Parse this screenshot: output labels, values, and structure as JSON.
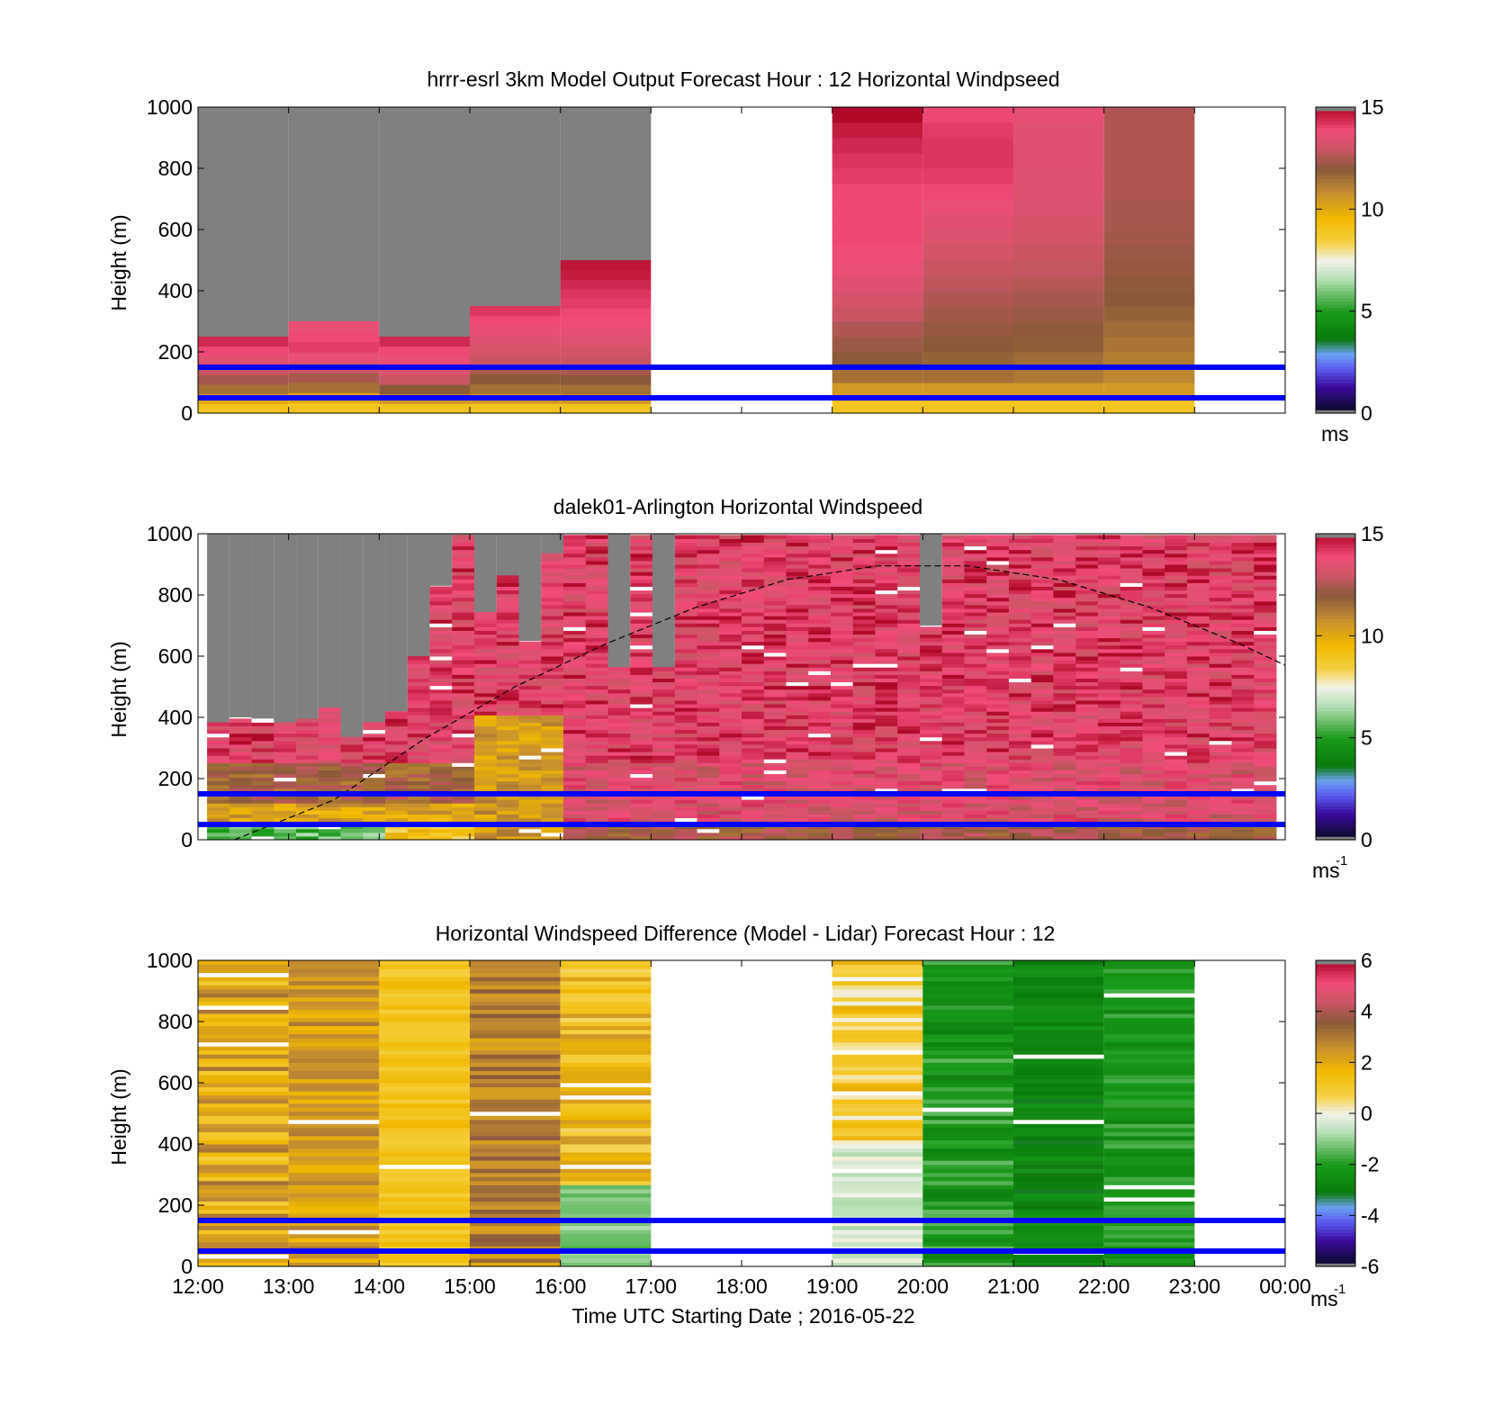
{
  "figure": {
    "xlabel": "Time UTC  Starting Date ; 2016-05-22",
    "x_ticks": [
      "12:00",
      "13:00",
      "14:00",
      "15:00",
      "16:00",
      "17:00",
      "18:00",
      "19:00",
      "20:00",
      "21:00",
      "22:00",
      "23:00",
      "00:00"
    ],
    "ylabel": "Height (m)",
    "y_ticks": [
      "0",
      "200",
      "400",
      "600",
      "800",
      "1000"
    ]
  },
  "chart_data": [
    {
      "type": "heatmap",
      "title": "hrrr-esrl 3km Model Output   Forecast Hour : 12 Horizontal Windpseed",
      "ylabel": "Height (m)",
      "xlim_hours": [
        12,
        24
      ],
      "ylim": [
        0,
        1000
      ],
      "colorbar": {
        "ticks": [
          "0",
          "5",
          "10",
          "15"
        ],
        "min": 0,
        "max": 15,
        "unit": "ms"
      },
      "reference_lines_m": [
        50,
        150
      ],
      "reference_line_color": "#0000ff",
      "missing_color": "#808080",
      "columns": [
        {
          "start": 12,
          "end": 13,
          "top": 250,
          "values": [
            9,
            10,
            11.5,
            12.5,
            13,
            13.5,
            14,
            14.5
          ]
        },
        {
          "start": 13,
          "end": 14,
          "top": 300,
          "values": [
            9,
            10,
            11.5,
            12.5,
            13.2,
            13.8,
            14.2,
            14,
            13.8
          ]
        },
        {
          "start": 14,
          "end": 15,
          "top": 250,
          "values": [
            9,
            10.5,
            12,
            13,
            13.5,
            13.8,
            14,
            14.5
          ]
        },
        {
          "start": 15,
          "end": 16,
          "top": 350,
          "values": [
            9,
            10.5,
            11.5,
            12,
            12.5,
            13,
            13.3,
            13.5,
            13.8,
            14,
            14.3
          ]
        },
        {
          "start": 16,
          "end": 17,
          "top": 500,
          "values": [
            9,
            10.5,
            11.5,
            12,
            12.5,
            13,
            13.2,
            13.5,
            13.7,
            13.9,
            14,
            14.2,
            14.3,
            14.5,
            14.7,
            14.8
          ]
        },
        {
          "start": 19,
          "end": 20,
          "top": 1000,
          "values": [
            9,
            10.5,
            11.5,
            12,
            12.3,
            12.6,
            13,
            13.3,
            13.6,
            13.8,
            13.9,
            14,
            14,
            14,
            14,
            14.2,
            14.3,
            14.5,
            14.7,
            15
          ]
        },
        {
          "start": 20,
          "end": 21,
          "top": 1000,
          "values": [
            9,
            10.5,
            11.5,
            11.8,
            12,
            12.2,
            12.4,
            12.6,
            12.8,
            13,
            13.2,
            13.4,
            13.6,
            13.8,
            14,
            14.2,
            14.3,
            14.3,
            14.2,
            14
          ]
        },
        {
          "start": 21,
          "end": 22,
          "top": 1000,
          "values": [
            9,
            10.5,
            11.3,
            11.6,
            11.9,
            12.1,
            12.3,
            12.5,
            12.7,
            12.9,
            13,
            13.2,
            13.3,
            13.4,
            13.5,
            13.5,
            13.6,
            13.6,
            13.6,
            13.7
          ]
        },
        {
          "start": 22,
          "end": 23,
          "top": 1000,
          "values": [
            9,
            10.5,
            11,
            11.2,
            11.4,
            11.6,
            11.8,
            12,
            12.1,
            12.2,
            12.3,
            12.4,
            12.5,
            12.5,
            12.6,
            12.6,
            12.6,
            12.6,
            12.6,
            12.6
          ]
        }
      ]
    },
    {
      "type": "heatmap",
      "title": "dalek01-Arlington  Horizontal Windspeed",
      "ylabel": "Height (m)",
      "xlim_hours": [
        12,
        24
      ],
      "ylim": [
        0,
        1000
      ],
      "colorbar": {
        "ticks": [
          "0",
          "5",
          "10",
          "15"
        ],
        "min": 0,
        "max": 15,
        "unit": "ms",
        "unit_exp": "-1"
      },
      "reference_lines_m": [
        50,
        150
      ],
      "reference_line_color": "#0000ff",
      "missing_color": "#808080",
      "data_top_m": [
        380,
        400,
        390,
        380,
        390,
        430,
        330,
        380,
        420,
        600,
        830,
        990,
        740,
        860,
        650,
        930,
        1000,
        1000,
        560,
        1000,
        560,
        1000,
        1000,
        1000,
        1000,
        1000,
        1000,
        1000,
        1000,
        1000,
        1000,
        1000,
        700,
        1000,
        1000,
        1000,
        1000,
        1000,
        1000,
        1000,
        1000,
        1000,
        1000,
        1000,
        1000,
        1000,
        1000,
        1000
      ],
      "curve": {
        "style": "dashed",
        "color": "#000000",
        "hours": [
          12.4,
          13.5,
          14.5,
          15.5,
          16.5,
          17.5,
          18.5,
          19.5,
          20.5,
          21.5,
          22.5,
          23.5,
          24
        ],
        "heights_m": [
          0,
          130,
          330,
          500,
          640,
          760,
          850,
          895,
          895,
          850,
          760,
          640,
          570
        ]
      }
    },
    {
      "type": "heatmap",
      "title": "Horizontal Windspeed Difference (Model - Lidar) Forecast Hour : 12",
      "ylabel": "Height (m)",
      "xlabel": "Time UTC  Starting Date ; 2016-05-22",
      "xlim_hours": [
        12,
        24
      ],
      "ylim": [
        0,
        1000
      ],
      "colorbar": {
        "ticks": [
          "-6",
          "-4",
          "-2",
          "0",
          "2",
          "4",
          "6"
        ],
        "min": -6,
        "max": 6,
        "unit": "ms",
        "unit_exp": "-1"
      },
      "reference_lines_m": [
        50,
        150
      ],
      "reference_line_color": "#0000ff",
      "columns": [
        {
          "start": 12,
          "end": 13,
          "mean": 2.0,
          "spread": 1.2
        },
        {
          "start": 13,
          "end": 14,
          "mean": 2.3,
          "spread": 0.8
        },
        {
          "start": 14,
          "end": 15,
          "mean": 1.2,
          "spread": 0.5
        },
        {
          "start": 15,
          "end": 16,
          "mean": 2.8,
          "spread": 0.9
        },
        {
          "start": 16,
          "end": 17,
          "mean": 1.5,
          "spread": 1.0
        },
        {
          "start": 19,
          "end": 20,
          "mean": 1.0,
          "spread": 1.0
        },
        {
          "start": 20,
          "end": 21,
          "mean": -2.2,
          "spread": 0.8
        },
        {
          "start": 21,
          "end": 22,
          "mean": -2.7,
          "spread": 0.5
        },
        {
          "start": 22,
          "end": 23,
          "mean": -2.2,
          "spread": 0.6
        }
      ]
    }
  ]
}
